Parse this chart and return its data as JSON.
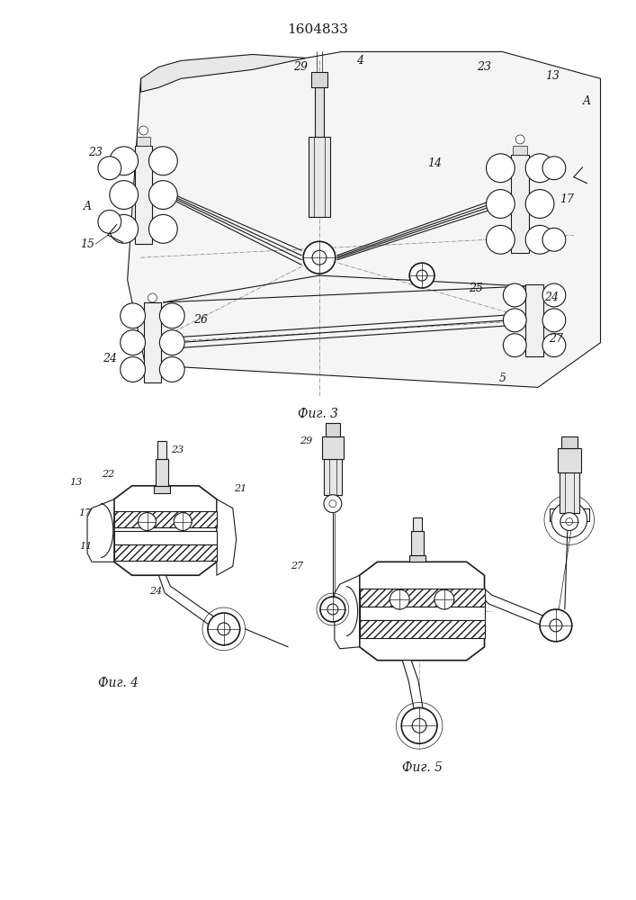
{
  "title": "1604833",
  "fig3_label": "Фиг. 3",
  "fig4_label": "Фиг. 4",
  "fig5_label": "Фиг. 5",
  "bg_color": "#ffffff",
  "lc": "#1a1a1a",
  "font_size_title": 11,
  "font_size_label": 9,
  "font_size_fig": 10
}
